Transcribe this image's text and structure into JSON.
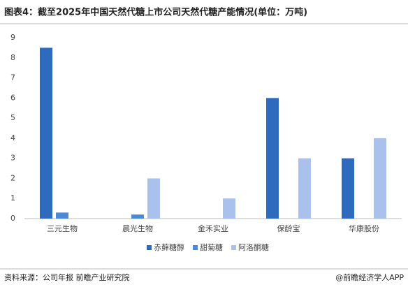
{
  "chart_data": {
    "type": "bar",
    "title": "图表4：截至2025年中国天然代糖上市公司天然代糖产能情况(单位：万吨)",
    "categories": [
      "三元生物",
      "晨光生物",
      "金禾实业",
      "保龄宝",
      "华康股份"
    ],
    "series": [
      {
        "name": "赤藓糖醇",
        "color": "#2e6bbf",
        "values": [
          8.5,
          0,
          0,
          6,
          3
        ]
      },
      {
        "name": "甜菊糖",
        "color": "#4a88d8",
        "values": [
          0.3,
          0.2,
          0,
          0,
          0
        ]
      },
      {
        "name": "阿洛酮糖",
        "color": "#a9c1ec",
        "values": [
          0,
          2,
          1,
          3,
          4
        ]
      }
    ],
    "ylim": [
      0,
      9
    ],
    "yticks": [
      0,
      1,
      2,
      3,
      4,
      5,
      6,
      7,
      8,
      9
    ],
    "grid": false,
    "source": "资料来源：公司年报 前瞻产业研究院",
    "credit": "@前瞻经济学人APP"
  }
}
